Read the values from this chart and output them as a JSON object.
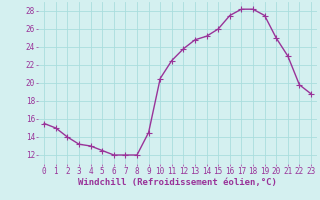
{
  "x": [
    0,
    1,
    2,
    3,
    4,
    5,
    6,
    7,
    8,
    9,
    10,
    11,
    12,
    13,
    14,
    15,
    16,
    17,
    18,
    19,
    20,
    21,
    22,
    23
  ],
  "y": [
    15.5,
    15.0,
    14.0,
    13.2,
    13.0,
    12.5,
    12.0,
    12.0,
    12.0,
    14.5,
    20.5,
    22.5,
    23.8,
    24.8,
    25.2,
    26.0,
    27.5,
    28.2,
    28.2,
    27.5,
    25.0,
    23.0,
    19.8,
    18.8
  ],
  "line_color": "#993399",
  "marker": "+",
  "markersize": 4,
  "linewidth": 1.0,
  "xlabel": "Windchill (Refroidissement éolien,°C)",
  "xlabel_fontsize": 6.5,
  "background_color": "#d4f0f0",
  "grid_color": "#aadddd",
  "ylim": [
    11,
    29
  ],
  "xlim": [
    -0.5,
    23.5
  ],
  "yticks": [
    12,
    14,
    16,
    18,
    20,
    22,
    24,
    26,
    28
  ],
  "xticks": [
    0,
    1,
    2,
    3,
    4,
    5,
    6,
    7,
    8,
    9,
    10,
    11,
    12,
    13,
    14,
    15,
    16,
    17,
    18,
    19,
    20,
    21,
    22,
    23
  ],
  "tick_fontsize": 5.5,
  "tick_color": "#993399",
  "label_color": "#993399"
}
